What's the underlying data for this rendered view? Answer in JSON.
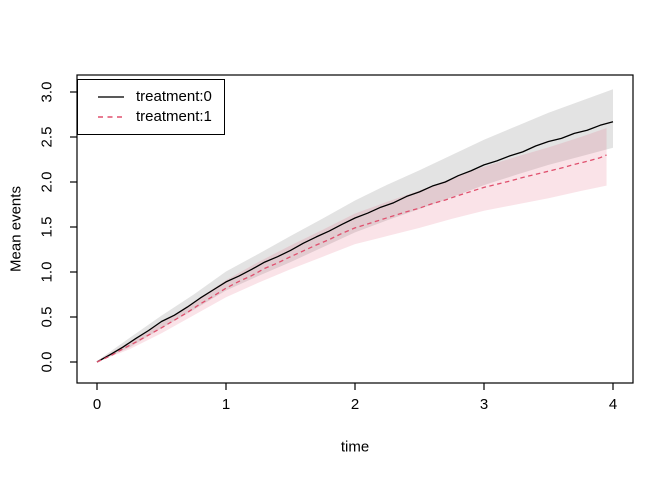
{
  "figure": {
    "background": "#ffffff"
  },
  "legend": {
    "position": "topleft",
    "items": [
      {
        "label": "treatment:0",
        "line_style": "solid",
        "color": "#222222"
      },
      {
        "label": "treatment:1",
        "line_style": "dashed",
        "color": "#e0506e"
      }
    ]
  },
  "chart_data": {
    "type": "line",
    "title": "",
    "xlabel": "time",
    "ylabel": "Mean events",
    "xlim": [
      0,
      4
    ],
    "ylim": [
      0,
      3
    ],
    "grid": false,
    "legend_position": "topleft",
    "x_ticks": [
      0,
      1,
      2,
      3,
      4
    ],
    "x_tick_labels": [
      "0",
      "1",
      "2",
      "3",
      "4"
    ],
    "y_ticks": [
      0.0,
      0.5,
      1.0,
      1.5,
      2.0,
      2.5,
      3.0
    ],
    "y_tick_labels": [
      "0.0",
      "0.5",
      "1.0",
      "1.5",
      "2.0",
      "2.5",
      "3.0"
    ],
    "series": [
      {
        "name": "treatment:0",
        "color": "#000000",
        "style": "solid",
        "x": [
          0,
          0.1,
          0.2,
          0.3,
          0.4,
          0.5,
          0.6,
          0.7,
          0.8,
          0.9,
          1.0,
          1.1,
          1.2,
          1.3,
          1.4,
          1.5,
          1.6,
          1.7,
          1.8,
          1.9,
          2.0,
          2.1,
          2.2,
          2.3,
          2.4,
          2.5,
          2.6,
          2.7,
          2.8,
          2.9,
          3.0,
          3.1,
          3.2,
          3.3,
          3.4,
          3.5,
          3.6,
          3.7,
          3.8,
          3.9,
          4.0
        ],
        "y": [
          0,
          0.08,
          0.165,
          0.26,
          0.35,
          0.45,
          0.52,
          0.61,
          0.71,
          0.8,
          0.89,
          0.955,
          1.03,
          1.11,
          1.17,
          1.24,
          1.32,
          1.39,
          1.455,
          1.53,
          1.6,
          1.655,
          1.72,
          1.77,
          1.84,
          1.89,
          1.955,
          2.0,
          2.07,
          2.125,
          2.19,
          2.235,
          2.29,
          2.335,
          2.4,
          2.45,
          2.485,
          2.54,
          2.575,
          2.63,
          2.67
        ],
        "band_fill": "#999999",
        "band_opacity": 0.28,
        "band": {
          "x": [
            0,
            0.25,
            0.5,
            0.75,
            1.0,
            1.25,
            1.5,
            1.75,
            2.0,
            2.25,
            2.5,
            2.75,
            3.0,
            3.25,
            3.5,
            3.75,
            4.0
          ],
          "upper": [
            0.01,
            0.265,
            0.515,
            0.75,
            1.005,
            1.2,
            1.4,
            1.595,
            1.795,
            1.97,
            2.13,
            2.3,
            2.47,
            2.62,
            2.77,
            2.9,
            3.03
          ],
          "lower": [
            0,
            0.16,
            0.375,
            0.58,
            0.795,
            0.955,
            1.11,
            1.275,
            1.44,
            1.575,
            1.7,
            1.83,
            1.965,
            2.08,
            2.19,
            2.285,
            2.38
          ]
        }
      },
      {
        "name": "treatment:1",
        "color": "#e0506e",
        "style": "dashed",
        "x": [
          0,
          0.1,
          0.2,
          0.3,
          0.4,
          0.5,
          0.6,
          0.7,
          0.8,
          0.9,
          1.0,
          1.1,
          1.2,
          1.3,
          1.4,
          1.5,
          1.6,
          1.7,
          1.8,
          1.9,
          2.0,
          2.1,
          2.2,
          2.3,
          2.4,
          2.5,
          2.6,
          2.7,
          2.8,
          2.9,
          3.0,
          3.1,
          3.2,
          3.3,
          3.4,
          3.5,
          3.6,
          3.7,
          3.8,
          3.9,
          3.95
        ],
        "y": [
          0,
          0.065,
          0.145,
          0.22,
          0.3,
          0.38,
          0.465,
          0.55,
          0.645,
          0.73,
          0.82,
          0.895,
          0.96,
          1.04,
          1.1,
          1.17,
          1.235,
          1.3,
          1.36,
          1.43,
          1.49,
          1.535,
          1.58,
          1.625,
          1.67,
          1.71,
          1.76,
          1.8,
          1.85,
          1.895,
          1.94,
          1.975,
          2.01,
          2.05,
          2.085,
          2.12,
          2.155,
          2.195,
          2.23,
          2.27,
          2.3
        ],
        "band_fill": "#e0506e",
        "band_opacity": 0.16,
        "band": {
          "x": [
            0,
            0.25,
            0.5,
            0.75,
            1.0,
            1.25,
            1.5,
            1.75,
            2.0,
            2.25,
            2.5,
            2.75,
            3.0,
            3.25,
            3.5,
            3.75,
            3.95
          ],
          "upper": [
            0.01,
            0.22,
            0.435,
            0.67,
            0.91,
            1.11,
            1.295,
            1.47,
            1.65,
            1.78,
            1.905,
            2.04,
            2.17,
            2.28,
            2.385,
            2.5,
            2.6
          ],
          "lower": [
            0,
            0.14,
            0.32,
            0.52,
            0.72,
            0.88,
            1.03,
            1.17,
            1.31,
            1.4,
            1.49,
            1.59,
            1.68,
            1.75,
            1.82,
            1.9,
            1.96
          ]
        }
      }
    ]
  }
}
